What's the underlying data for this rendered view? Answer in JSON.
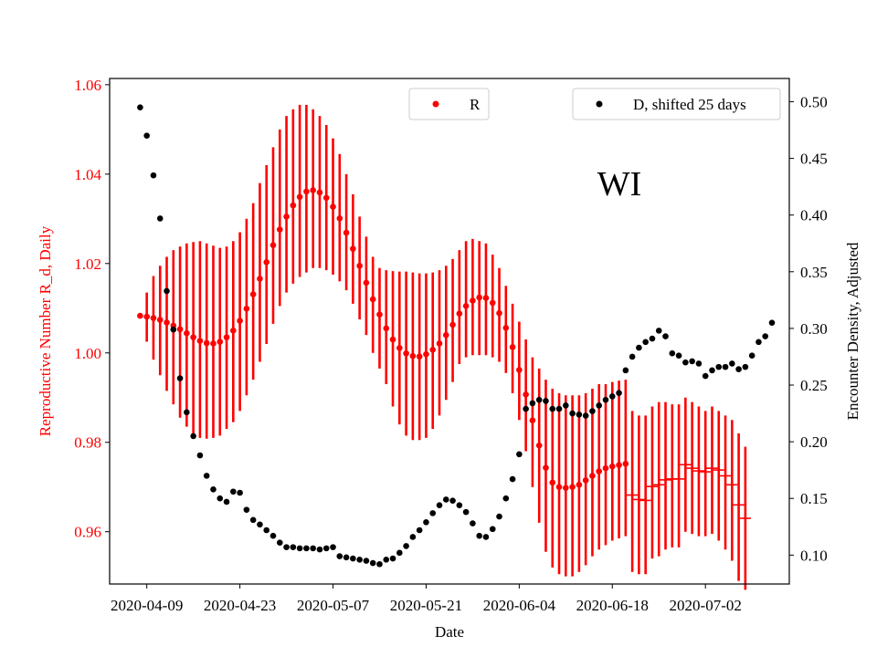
{
  "chart_data": {
    "type": "scatter",
    "annotation": "WI",
    "xlabel": "Date",
    "ylabel_left": "Reproductive Number R_d, Daily",
    "ylabel_right": "Encounter Density, Adjusted",
    "x_ticks": [
      "2020-04-09",
      "2020-04-23",
      "2020-05-07",
      "2020-05-21",
      "2020-06-04",
      "2020-06-18",
      "2020-07-02"
    ],
    "ylim_left": [
      0.9483,
      1.0614
    ],
    "ylim_right": [
      0.0745,
      0.5205
    ],
    "yticks_left": [
      "0.96",
      "0.98",
      "1.00",
      "1.02",
      "1.04",
      "1.06"
    ],
    "yticks_right": [
      "0.10",
      "0.15",
      "0.20",
      "0.25",
      "0.30",
      "0.35",
      "0.40",
      "0.45",
      "0.50"
    ],
    "colors": {
      "r": "#ff0000",
      "d": "#000000",
      "axis_left": "#ff0000"
    },
    "legend": {
      "r_label": "R",
      "d_label": "D, shifted 25 days"
    },
    "series_r": {
      "name": "R",
      "x_day_start": -1,
      "values": [
        1.0083,
        1.0081,
        1.0078,
        1.0074,
        1.0068,
        1.0061,
        1.0053,
        1.0044,
        1.0035,
        1.0027,
        1.0022,
        1.0021,
        1.0025,
        1.0035,
        1.005,
        1.0072,
        1.0099,
        1.0131,
        1.0166,
        1.0203,
        1.0241,
        1.0276,
        1.0305,
        1.033,
        1.0349,
        1.0361,
        1.0364,
        1.0359,
        1.0347,
        1.0327,
        1.0301,
        1.0269,
        1.0233,
        1.0195,
        1.0157,
        1.012,
        1.0086,
        1.0055,
        1.003,
        1.0011,
        0.9999,
        0.9993,
        0.9992,
        0.9997,
        1.0007,
        1.0021,
        1.004,
        1.0063,
        1.0088,
        1.0105,
        1.0117,
        1.0124,
        1.0123,
        1.0112,
        1.0089,
        1.0056,
        1.0013,
        0.9962,
        0.9907,
        0.9849,
        0.9793,
        0.9743,
        0.971,
        0.97,
        0.9698,
        0.97,
        0.9705,
        0.9715,
        0.9725,
        0.9735,
        0.9742,
        0.9746,
        0.9749,
        0.9752,
        0.9682,
        0.9672,
        0.967,
        0.9701,
        0.9705,
        0.9716,
        0.9718,
        0.9718,
        0.975,
        0.9742,
        0.9736,
        0.9734,
        0.9742,
        0.9738,
        0.9725,
        0.9705,
        0.966,
        0.963
      ],
      "err_low": [
        1.0083,
        1.0025,
        0.9985,
        0.995,
        0.9915,
        0.9885,
        0.9855,
        0.9835,
        0.982,
        0.981,
        0.9808,
        0.981,
        0.9815,
        0.983,
        0.9845,
        0.987,
        0.9905,
        0.994,
        0.998,
        1.002,
        1.0065,
        1.0105,
        1.0135,
        1.0155,
        1.017,
        1.018,
        1.019,
        1.019,
        1.0185,
        1.0175,
        1.016,
        1.014,
        1.011,
        1.0075,
        1.004,
        1.0,
        0.9965,
        0.993,
        0.988,
        0.984,
        0.9815,
        0.9805,
        0.9805,
        0.981,
        0.983,
        0.986,
        0.9895,
        0.9935,
        0.9975,
        0.999,
        0.9995,
        0.9995,
        0.9995,
        0.999,
        0.998,
        0.9955,
        0.991,
        0.985,
        0.978,
        0.97,
        0.962,
        0.9555,
        0.952,
        0.9505,
        0.95,
        0.95,
        0.951,
        0.9525,
        0.9545,
        0.956,
        0.957,
        0.958,
        0.9585,
        0.959,
        0.951,
        0.9505,
        0.9505,
        0.954,
        0.9545,
        0.956,
        0.9565,
        0.9565,
        0.96,
        0.9595,
        0.959,
        0.959,
        0.9595,
        0.958,
        0.956,
        0.9535,
        0.949,
        0.947
      ],
      "err_high": [
        1.0083,
        1.0135,
        1.0172,
        1.0195,
        1.0215,
        1.023,
        1.0238,
        1.0245,
        1.0248,
        1.025,
        1.0245,
        1.024,
        1.0235,
        1.0238,
        1.025,
        1.027,
        1.03,
        1.0335,
        1.038,
        1.042,
        1.046,
        1.05,
        1.053,
        1.0545,
        1.0555,
        1.0555,
        1.0545,
        1.053,
        1.051,
        1.048,
        1.0445,
        1.04,
        1.0355,
        1.0305,
        1.026,
        1.0215,
        1.019,
        1.0185,
        1.0183,
        1.0182,
        1.0182,
        1.018,
        1.0178,
        1.0178,
        1.018,
        1.0185,
        1.0195,
        1.021,
        1.023,
        1.025,
        1.0255,
        1.025,
        1.0245,
        1.022,
        1.019,
        1.015,
        1.011,
        1.007,
        1.003,
        0.999,
        0.9965,
        0.994,
        0.992,
        0.991,
        0.9905,
        0.9905,
        0.9905,
        0.991,
        0.992,
        0.993,
        0.993,
        0.9935,
        0.9938,
        0.994,
        0.987,
        0.986,
        0.986,
        0.988,
        0.989,
        0.989,
        0.9885,
        0.9885,
        0.99,
        0.989,
        0.988,
        0.987,
        0.988,
        0.987,
        0.986,
        0.985,
        0.982,
        0.979
      ]
    },
    "series_d": {
      "name": "D, shifted 25 days",
      "x_day_start": -1,
      "values": [
        0.495,
        0.47,
        0.435,
        0.397,
        0.333,
        0.299,
        0.256,
        0.226,
        0.205,
        0.188,
        0.17,
        0.158,
        0.15,
        0.147,
        0.156,
        0.155,
        0.14,
        0.131,
        0.127,
        0.122,
        0.117,
        0.111,
        0.107,
        0.107,
        0.106,
        0.106,
        0.106,
        0.105,
        0.106,
        0.107,
        0.099,
        0.098,
        0.097,
        0.096,
        0.095,
        0.093,
        0.092,
        0.096,
        0.097,
        0.102,
        0.108,
        0.116,
        0.122,
        0.129,
        0.137,
        0.144,
        0.149,
        0.148,
        0.144,
        0.138,
        0.128,
        0.117,
        0.116,
        0.123,
        0.134,
        0.15,
        0.167,
        0.189,
        0.229,
        0.234,
        0.237,
        0.236,
        0.229,
        0.229,
        0.232,
        0.225,
        0.224,
        0.223,
        0.227,
        0.232,
        0.237,
        0.24,
        0.243,
        0.263,
        0.275,
        0.283,
        0.288,
        0.291,
        0.298,
        0.293,
        0.278,
        0.276,
        0.27,
        0.271,
        0.269,
        0.258,
        0.263,
        0.266,
        0.266,
        0.269,
        0.264,
        0.266,
        0.276,
        0.288,
        0.293,
        0.305
      ]
    }
  }
}
